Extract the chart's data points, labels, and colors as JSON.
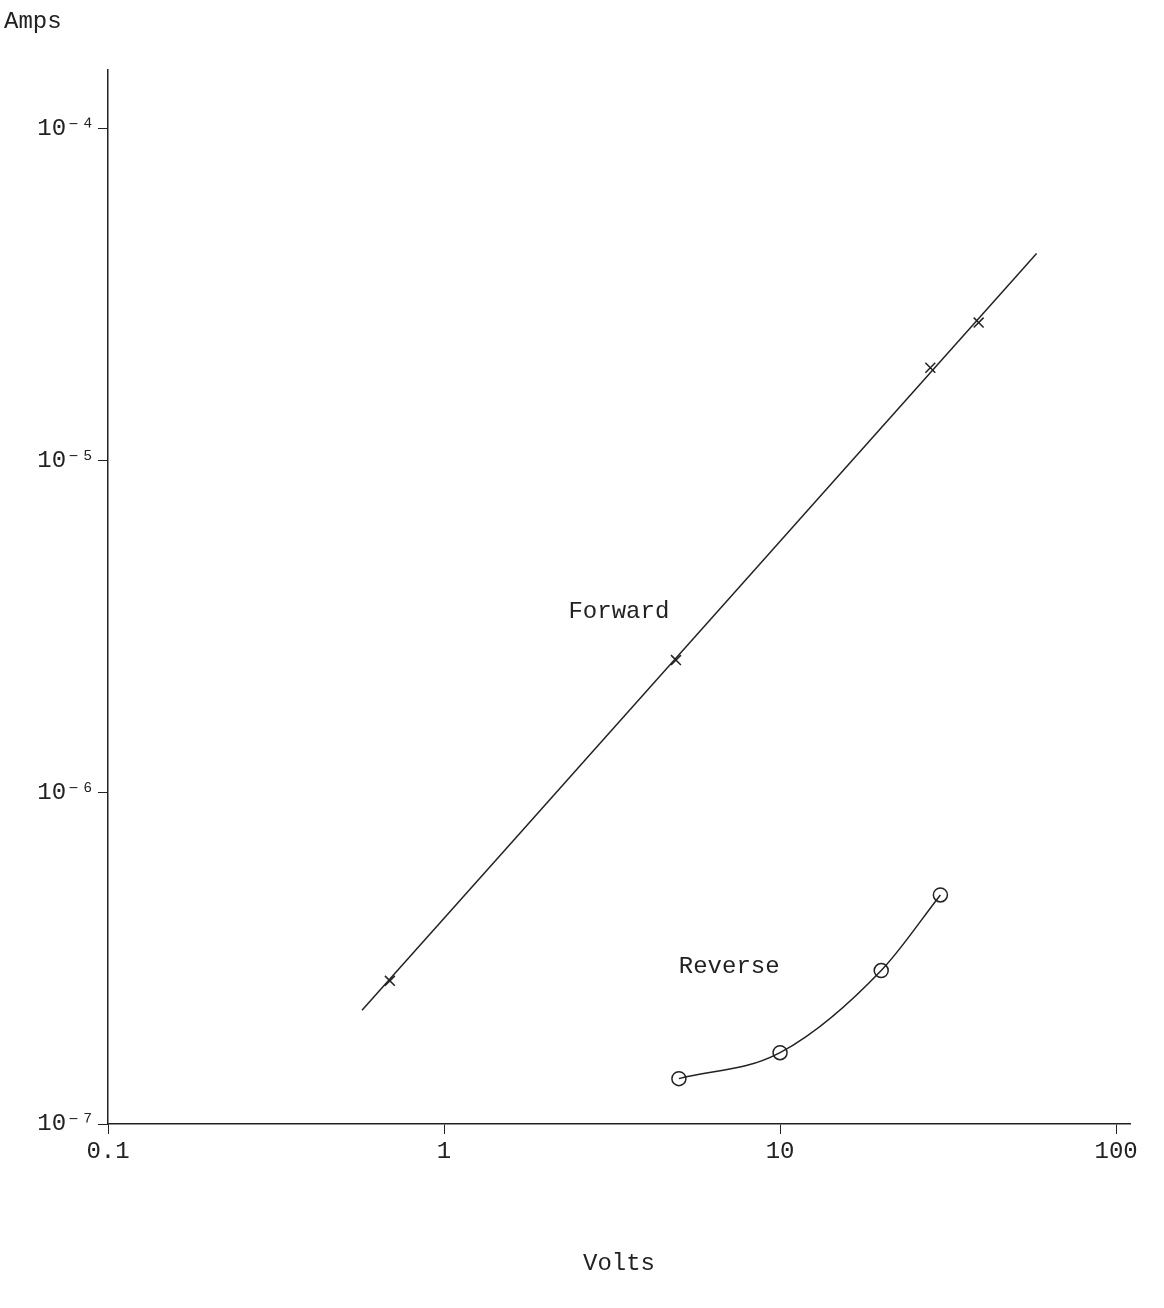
{
  "chart_data": {
    "type": "line",
    "xlabel": "Volts",
    "ylabel": "Amps",
    "log": "xy",
    "grid": false,
    "legend": false,
    "xlim": [
      0.1,
      110
    ],
    "xticks": [
      0.1,
      1,
      10,
      100
    ],
    "ylim": [
      1e-07,
      0.00015
    ],
    "yticks": [
      {
        "value": 1e-07,
        "label": "10⁻⁷"
      },
      {
        "value": 1e-06,
        "label": "10⁻⁶"
      },
      {
        "value": 1e-05,
        "label": "10⁻⁵"
      },
      {
        "value": 0.0001,
        "label": "10⁻⁴"
      }
    ],
    "series": [
      {
        "name": "Forward",
        "color": "#222222",
        "marker": "none",
        "x": [
          0.57,
          58
        ],
        "values": [
          2.2e-07,
          4.2e-05
        ]
      },
      {
        "type": "scatter",
        "color": "#222222",
        "marker": "cross",
        "x": [
          0.69,
          4.9,
          28,
          39
        ],
        "values": [
          2.7e-07,
          2.5e-06,
          1.9e-05,
          2.6e-05
        ]
      },
      {
        "name": "Reverse",
        "color": "#222222",
        "marker": "circle",
        "x": [
          5,
          10,
          20,
          30
        ],
        "values": [
          1.37e-07,
          1.64e-07,
          2.9e-07,
          4.9e-07
        ]
      }
    ]
  }
}
